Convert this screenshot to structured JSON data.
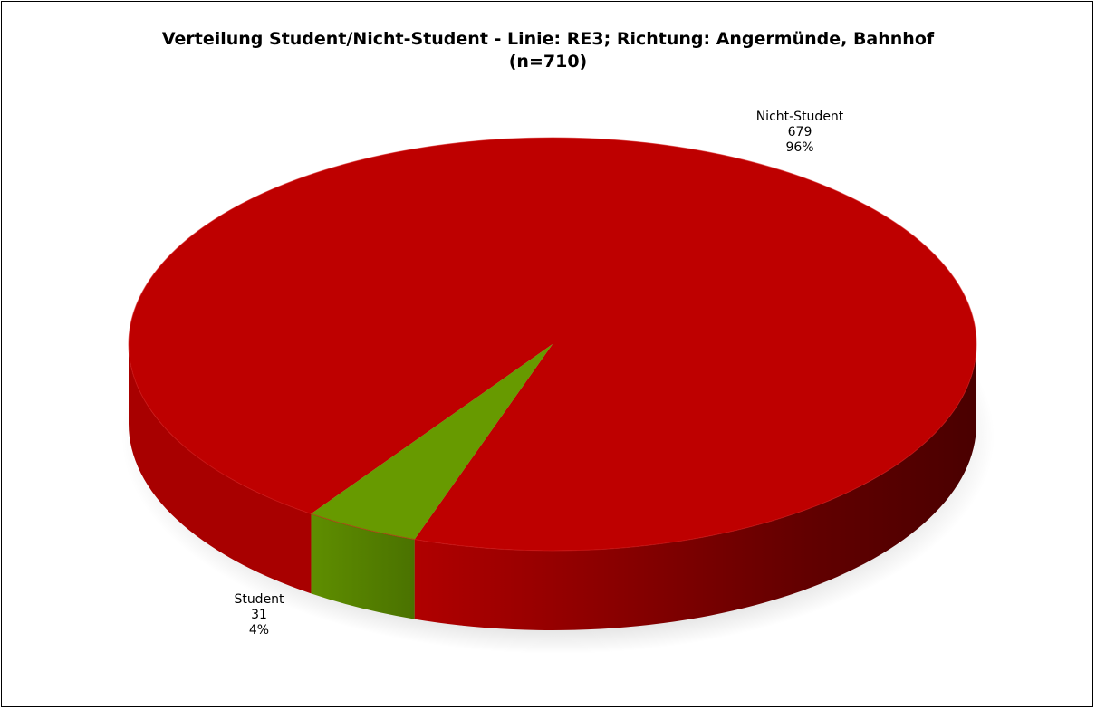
{
  "chart_data": {
    "type": "pie",
    "title": "Verteilung Student/Nicht-Student - Linie: RE3; Richtung: Angermünde, Bahnhof",
    "subtitle": "(n=710)",
    "slices": [
      {
        "label": "Nicht-Student",
        "value": 679,
        "percent": "96%",
        "color": "#BE0000",
        "side_dark": "#4E0000",
        "side_light": "#A80000"
      },
      {
        "label": "Student",
        "value": 31,
        "percent": "4%",
        "color": "#679A00",
        "side_dark": "#4A7200",
        "side_light": "#5F8E00"
      }
    ],
    "legend": "none",
    "style": "3d"
  }
}
